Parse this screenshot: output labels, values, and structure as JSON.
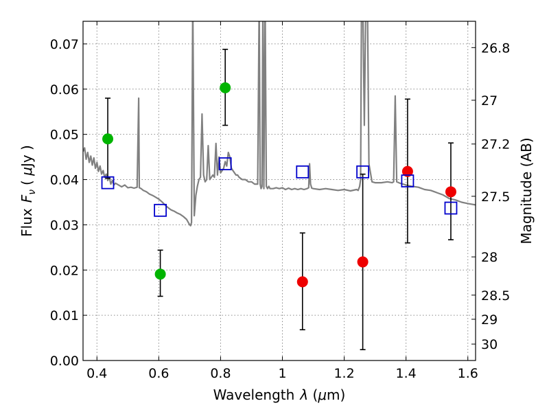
{
  "chart_data": {
    "type": "scatter",
    "xlabel": "Wavelength",
    "xlabel_var": "λ",
    "xlabel_unit_open": " (",
    "xlabel_unit_mu": "μ",
    "xlabel_unit_rest": "m)",
    "ylabel": "Flux",
    "ylabel_var": "F",
    "ylabel_sub": "ν",
    "ylabel_unit_open": "( ",
    "ylabel_unit_mu": "μ",
    "ylabel_unit_rest": "Jy )",
    "ylabel_right": "Magnitude (AB)",
    "xlim": [
      0.355,
      1.625
    ],
    "ylim": [
      0.0,
      0.075
    ],
    "x_ticks": [
      0.4,
      0.6,
      0.8,
      1.0,
      1.2,
      1.4,
      1.6
    ],
    "x_tick_labels": [
      "0.4",
      "0.6",
      "0.8",
      "1",
      "1.2",
      "1.4",
      "1.6"
    ],
    "y_ticks": [
      0.0,
      0.01,
      0.02,
      0.03,
      0.04,
      0.05,
      0.06,
      0.07
    ],
    "y_tick_labels": [
      "0.00",
      "0.01",
      "0.02",
      "0.03",
      "0.04",
      "0.05",
      "0.06",
      "0.07"
    ],
    "right_ticks": [
      {
        "mag": 26.8,
        "label": "26.8"
      },
      {
        "mag": 27.0,
        "label": "27"
      },
      {
        "mag": 27.2,
        "label": "27.2"
      },
      {
        "mag": 27.5,
        "label": "27.5"
      },
      {
        "mag": 28.0,
        "label": "28"
      },
      {
        "mag": 28.5,
        "label": "28.5"
      },
      {
        "mag": 29.0,
        "label": "29"
      },
      {
        "mag": 30.0,
        "label": "30"
      }
    ],
    "grid": true,
    "colors": {
      "model": "#808080",
      "observed_blue": "#00b400",
      "observed_red": "#ee0000",
      "model_box": "#0000cc",
      "errorbar": "#000000"
    },
    "series": [
      {
        "name": "model-spectrum",
        "kind": "line",
        "x": [
          0.355,
          0.36,
          0.365,
          0.37,
          0.375,
          0.38,
          0.385,
          0.39,
          0.395,
          0.4,
          0.405,
          0.41,
          0.415,
          0.42,
          0.425,
          0.43,
          0.435,
          0.44,
          0.445,
          0.45,
          0.455,
          0.46,
          0.47,
          0.48,
          0.49,
          0.5,
          0.51,
          0.52,
          0.53,
          0.535,
          0.537,
          0.54,
          0.543,
          0.55,
          0.56,
          0.57,
          0.58,
          0.59,
          0.6,
          0.61,
          0.62,
          0.63,
          0.64,
          0.65,
          0.66,
          0.67,
          0.68,
          0.69,
          0.7,
          0.703,
          0.706,
          0.71,
          0.715,
          0.72,
          0.725,
          0.73,
          0.735,
          0.74,
          0.745,
          0.75,
          0.755,
          0.76,
          0.765,
          0.77,
          0.775,
          0.78,
          0.785,
          0.79,
          0.795,
          0.8,
          0.805,
          0.81,
          0.815,
          0.82,
          0.825,
          0.83,
          0.835,
          0.84,
          0.845,
          0.85,
          0.855,
          0.86,
          0.87,
          0.88,
          0.89,
          0.9,
          0.91,
          0.92,
          0.925,
          0.928,
          0.931,
          0.934,
          0.937,
          0.94,
          0.944,
          0.948,
          0.952,
          0.956,
          0.96,
          0.97,
          0.98,
          0.99,
          1.0,
          1.01,
          1.02,
          1.03,
          1.04,
          1.05,
          1.06,
          1.07,
          1.08,
          1.085,
          1.088,
          1.091,
          1.095,
          1.1,
          1.12,
          1.14,
          1.16,
          1.18,
          1.2,
          1.22,
          1.24,
          1.245,
          1.25,
          1.253,
          1.256,
          1.26,
          1.265,
          1.27,
          1.275,
          1.28,
          1.29,
          1.3,
          1.32,
          1.34,
          1.355,
          1.36,
          1.365,
          1.37,
          1.38,
          1.4,
          1.42,
          1.44,
          1.46,
          1.48,
          1.5,
          1.52,
          1.54,
          1.56,
          1.58,
          1.6,
          1.625
        ],
        "y": [
          0.0462,
          0.047,
          0.0445,
          0.046,
          0.0438,
          0.0452,
          0.0432,
          0.0448,
          0.0425,
          0.0438,
          0.0418,
          0.043,
          0.0412,
          0.042,
          0.0405,
          0.0412,
          0.0398,
          0.0405,
          0.039,
          0.0398,
          0.0388,
          0.0392,
          0.0388,
          0.0384,
          0.0388,
          0.0382,
          0.0383,
          0.0381,
          0.0383,
          0.058,
          0.0382,
          0.0381,
          0.038,
          0.0376,
          0.0373,
          0.0368,
          0.0365,
          0.0361,
          0.0357,
          0.0351,
          0.0344,
          0.0338,
          0.0333,
          0.033,
          0.0326,
          0.0323,
          0.0318,
          0.0312,
          0.03,
          0.0298,
          0.0305,
          0.08,
          0.032,
          0.0365,
          0.0385,
          0.04,
          0.0405,
          0.0545,
          0.041,
          0.0395,
          0.04,
          0.0475,
          0.04,
          0.0405,
          0.041,
          0.0405,
          0.048,
          0.041,
          0.045,
          0.0415,
          0.042,
          0.0425,
          0.044,
          0.043,
          0.046,
          0.045,
          0.0425,
          0.042,
          0.0415,
          0.041,
          0.041,
          0.0405,
          0.04,
          0.04,
          0.0395,
          0.0395,
          0.039,
          0.039,
          0.08,
          0.039,
          0.038,
          0.0385,
          0.08,
          0.038,
          0.08,
          0.0385,
          0.038,
          0.0385,
          0.038,
          0.038,
          0.0382,
          0.038,
          0.0382,
          0.0378,
          0.0381,
          0.0378,
          0.038,
          0.0378,
          0.038,
          0.0378,
          0.038,
          0.0382,
          0.0435,
          0.039,
          0.0381,
          0.038,
          0.0378,
          0.038,
          0.0378,
          0.0376,
          0.0378,
          0.0375,
          0.0378,
          0.0376,
          0.0385,
          0.04,
          0.08,
          0.08,
          0.052,
          0.08,
          0.08,
          0.0435,
          0.0395,
          0.0393,
          0.0393,
          0.0395,
          0.0393,
          0.0395,
          0.0585,
          0.0395,
          0.0392,
          0.0388,
          0.0385,
          0.0383,
          0.0378,
          0.0376,
          0.0371,
          0.0366,
          0.0358,
          0.0355,
          0.035,
          0.0347,
          0.0344
        ]
      },
      {
        "name": "green-measurements",
        "kind": "points",
        "x": [
          0.435,
          0.605,
          0.815
        ],
        "y": [
          0.049,
          0.0191,
          0.0603
        ],
        "err_low": [
          0.0403,
          0.0142,
          0.052
        ],
        "err_high": [
          0.058,
          0.0244,
          0.0688
        ]
      },
      {
        "name": "red-measurements",
        "kind": "points",
        "x": [
          1.065,
          1.26,
          1.405,
          1.545
        ],
        "y": [
          0.0174,
          0.0218,
          0.0418,
          0.0373
        ],
        "err_low": [
          0.0068,
          0.0024,
          0.026,
          0.0267
        ],
        "err_high": [
          0.0282,
          0.0412,
          0.0578,
          0.0481
        ]
      },
      {
        "name": "model-photometry",
        "kind": "squares",
        "x": [
          0.435,
          0.605,
          0.815,
          1.065,
          1.26,
          1.405,
          1.545
        ],
        "y": [
          0.0393,
          0.0332,
          0.0435,
          0.0417,
          0.0417,
          0.0397,
          0.0337
        ]
      }
    ]
  }
}
